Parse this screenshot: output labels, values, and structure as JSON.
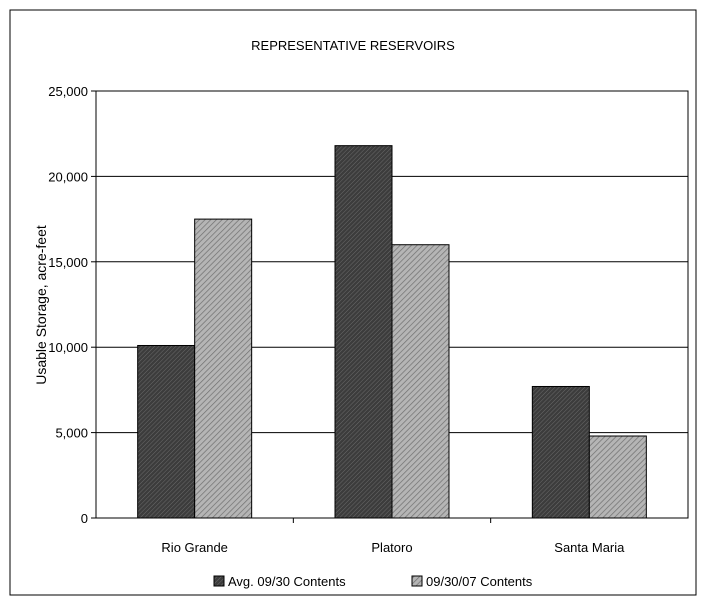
{
  "chart_data": {
    "type": "bar",
    "title": "REPRESENTATIVE RESERVOIRS",
    "ylabel": "Usable Storage, acre-feet",
    "xlabel": "",
    "categories": [
      "Rio Grande",
      "Platoro",
      "Santa Maria"
    ],
    "ylim": [
      0,
      25000
    ],
    "yticks": [
      0,
      5000,
      10000,
      15000,
      20000,
      25000
    ],
    "ytick_labels": [
      "0",
      "5,000",
      "10,000",
      "15,000",
      "20,000",
      "25,000"
    ],
    "grid": true,
    "legend_position": "bottom",
    "series": [
      {
        "name": "Avg. 09/30 Contents",
        "values": [
          10100,
          21800,
          7700
        ],
        "color": "#444444",
        "pattern": "dense-hatch"
      },
      {
        "name": "09/30/07 Contents",
        "values": [
          17500,
          16000,
          4800
        ],
        "color": "#9a9a9a",
        "pattern": "diagonal-hatch"
      }
    ]
  }
}
